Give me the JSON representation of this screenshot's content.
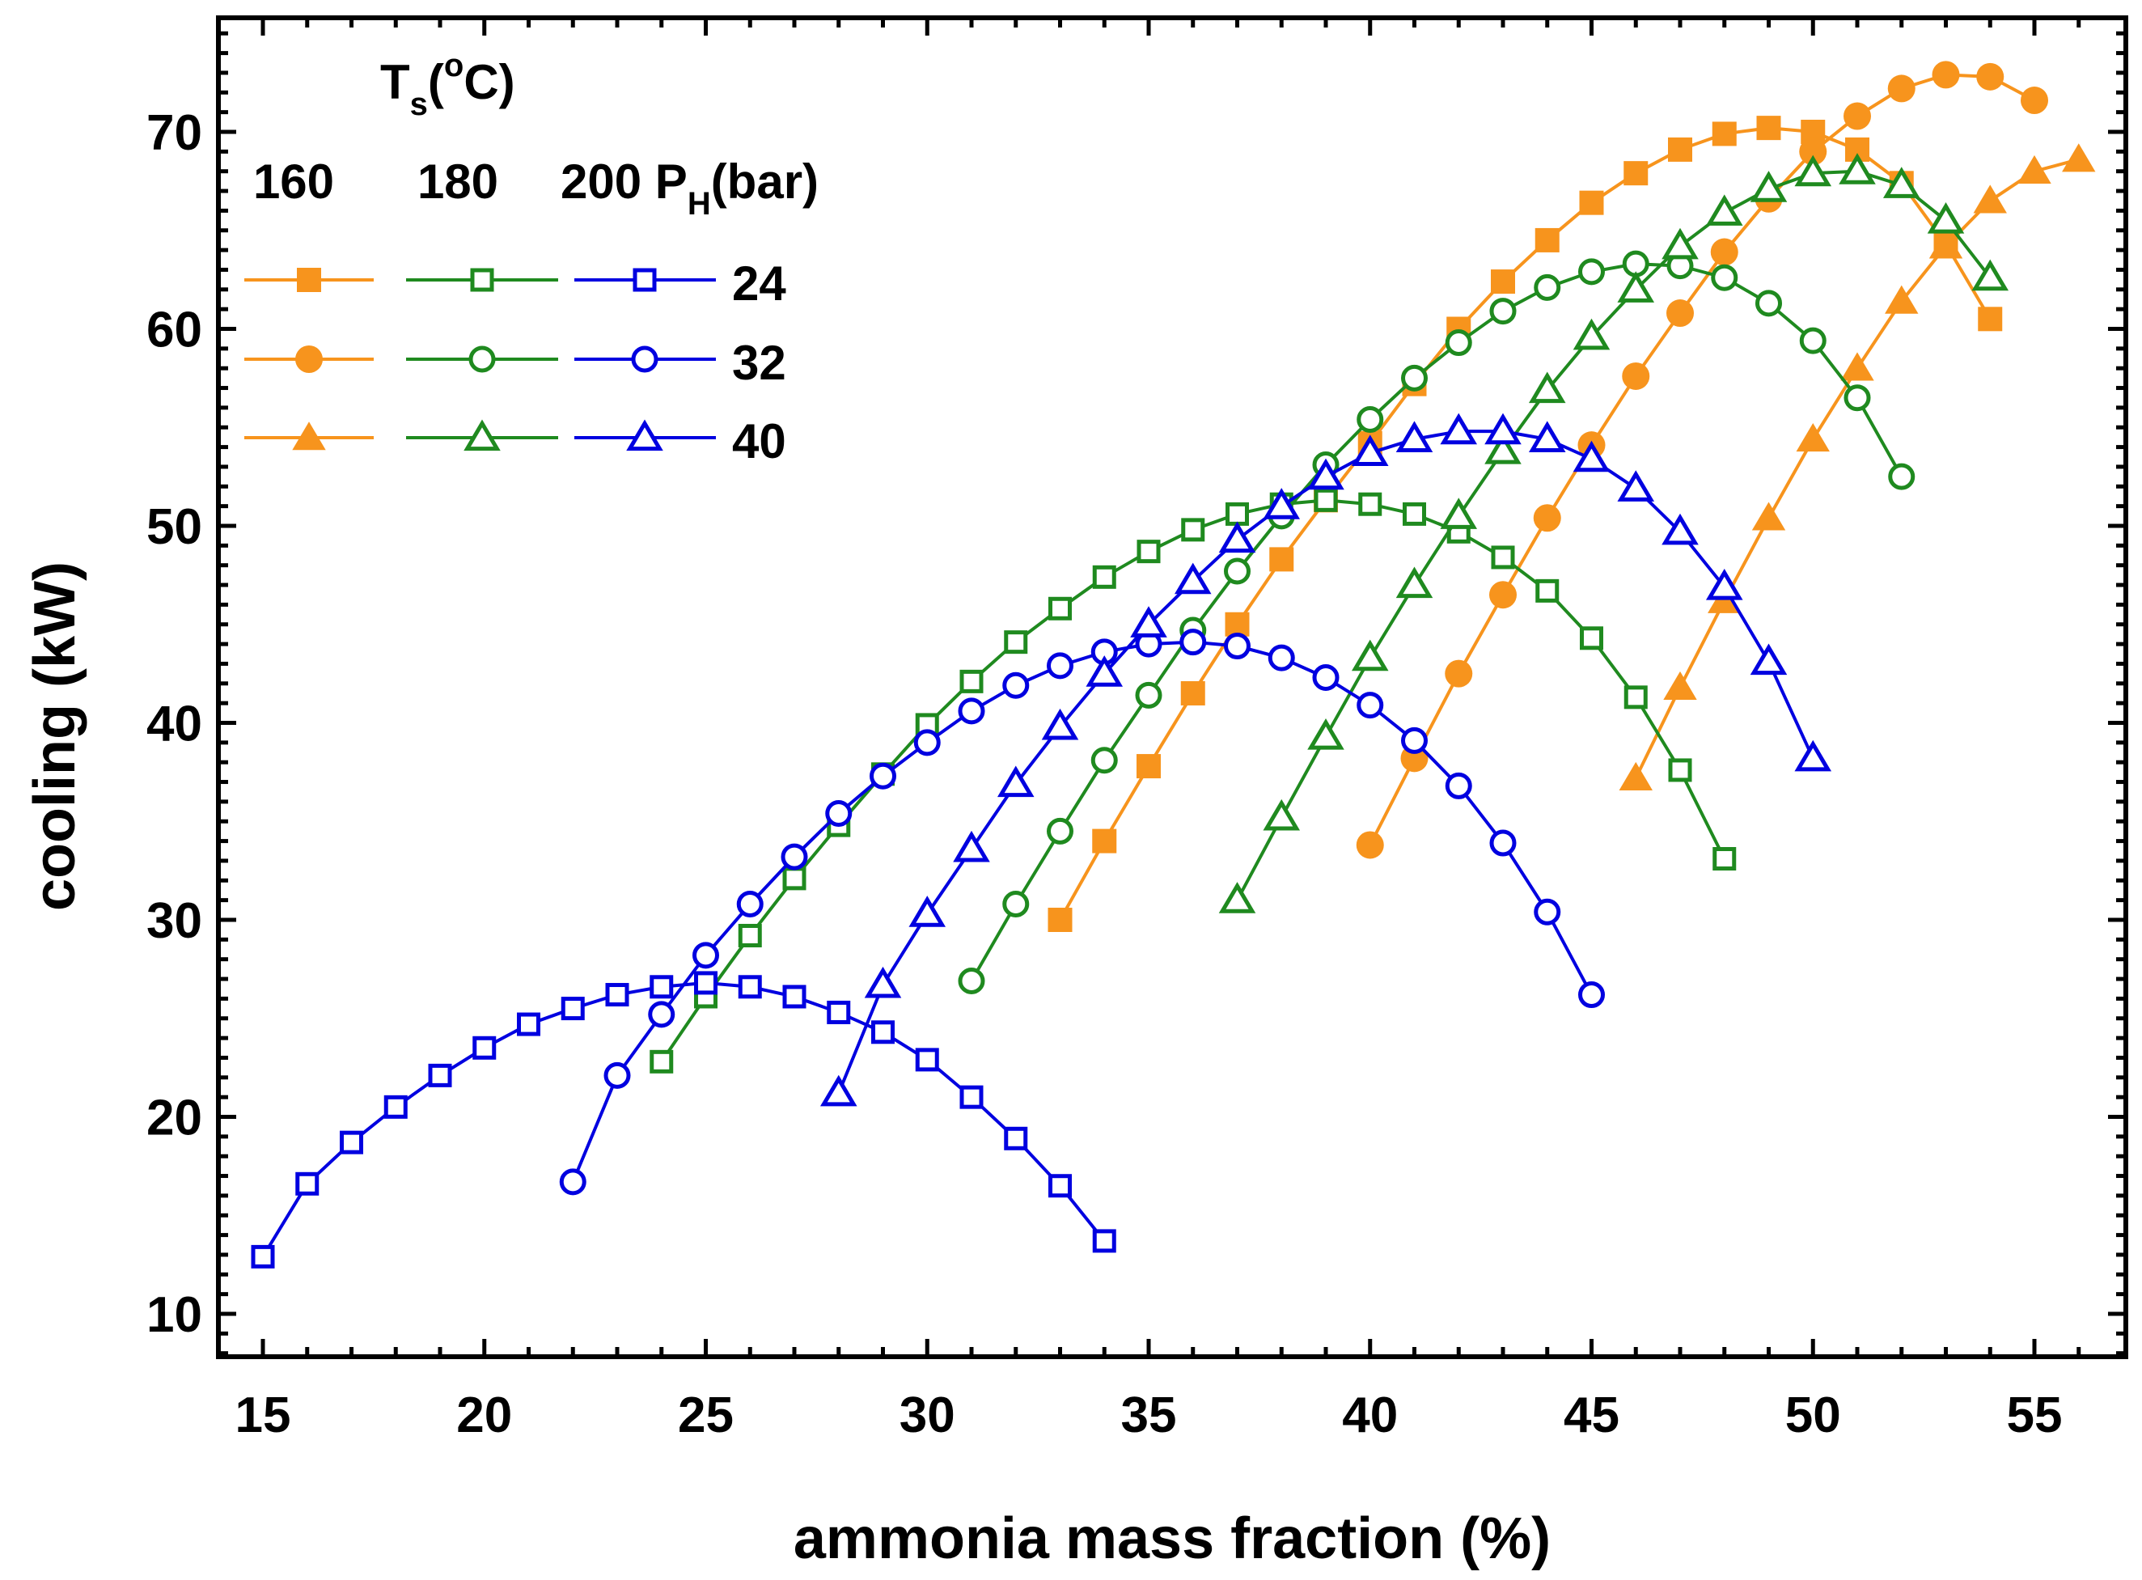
{
  "chart_data": {
    "type": "line",
    "title": "",
    "xlabel": "ammonia mass fraction (%)",
    "ylabel": "cooling (kW)",
    "xlim": [
      14,
      57
    ],
    "ylim": [
      7.5,
      76
    ],
    "xticks": [
      15,
      20,
      25,
      30,
      35,
      40,
      45,
      50,
      55
    ],
    "yticks": [
      10,
      20,
      30,
      40,
      50,
      60,
      70
    ],
    "legend": {
      "placement": "top-left",
      "title_prefix": "T",
      "title_sub": "s",
      "title_open": "(",
      "title_sup": "o",
      "title_unit": "C)",
      "col_labels": [
        "160",
        "180",
        "200"
      ],
      "ph_prefix": "P",
      "ph_sub": "H",
      "ph_unit": "(bar)",
      "row_labels": [
        "24",
        "32",
        "40"
      ]
    },
    "colors": {
      "160": "#F7941D",
      "180": "#1F8A1F",
      "200": "#0000E0"
    },
    "series": [
      {
        "ts": "160",
        "ph": "24",
        "marker": "square",
        "filled": true,
        "x": [
          33,
          34,
          35,
          36,
          37,
          38,
          39,
          40,
          41,
          42,
          43,
          44,
          45,
          46,
          47,
          48,
          49,
          50,
          51,
          52,
          53,
          54
        ],
        "y": [
          30.0,
          34.0,
          37.8,
          41.5,
          45.0,
          48.3,
          51.3,
          54.2,
          57.2,
          60.0,
          62.4,
          64.5,
          66.4,
          67.9,
          69.1,
          69.9,
          70.2,
          70.0,
          69.1,
          67.4,
          64.3,
          60.5
        ]
      },
      {
        "ts": "160",
        "ph": "32",
        "marker": "circle",
        "filled": true,
        "x": [
          40,
          41,
          42,
          43,
          44,
          45,
          46,
          47,
          48,
          49,
          50,
          51,
          52,
          53,
          54,
          55
        ],
        "y": [
          33.8,
          38.2,
          42.5,
          46.5,
          50.4,
          54.1,
          57.6,
          60.8,
          63.9,
          66.6,
          69.0,
          70.8,
          72.2,
          72.9,
          72.8,
          71.6
        ]
      },
      {
        "ts": "160",
        "ph": "40",
        "marker": "triangle",
        "filled": true,
        "x": [
          46,
          47,
          48,
          49,
          50,
          51,
          52,
          53,
          54,
          55,
          56
        ],
        "y": [
          37.2,
          41.8,
          46.2,
          50.4,
          54.4,
          58.0,
          61.4,
          64.2,
          66.5,
          68.0,
          68.6
        ]
      },
      {
        "ts": "180",
        "ph": "24",
        "marker": "square",
        "filled": false,
        "x": [
          24,
          25,
          26,
          27,
          28,
          29,
          30,
          31,
          32,
          33,
          34,
          35,
          36,
          37,
          38,
          39,
          40,
          41,
          42,
          43,
          44,
          45,
          46,
          47,
          48
        ],
        "y": [
          22.8,
          26.1,
          29.2,
          32.1,
          34.8,
          37.4,
          39.9,
          42.1,
          44.1,
          45.8,
          47.4,
          48.7,
          49.8,
          50.6,
          51.1,
          51.3,
          51.1,
          50.6,
          49.7,
          48.4,
          46.7,
          44.3,
          41.3,
          37.6,
          33.1
        ]
      },
      {
        "ts": "180",
        "ph": "32",
        "marker": "circle",
        "filled": false,
        "x": [
          31,
          32,
          33,
          34,
          35,
          36,
          37,
          38,
          39,
          40,
          41,
          42,
          43,
          44,
          45,
          46,
          47,
          48,
          49,
          50,
          51,
          52
        ],
        "y": [
          26.9,
          30.8,
          34.5,
          38.1,
          41.4,
          44.7,
          47.7,
          50.5,
          53.1,
          55.4,
          57.5,
          59.3,
          60.9,
          62.1,
          62.9,
          63.3,
          63.2,
          62.6,
          61.3,
          59.4,
          56.5,
          52.5
        ]
      },
      {
        "ts": "180",
        "ph": "40",
        "marker": "triangle",
        "filled": false,
        "x": [
          37,
          38,
          39,
          40,
          41,
          42,
          43,
          44,
          45,
          46,
          47,
          48,
          49,
          50,
          51,
          52,
          53,
          54
        ],
        "y": [
          31.0,
          35.2,
          39.3,
          43.3,
          47.0,
          50.5,
          53.8,
          56.9,
          59.6,
          62.0,
          64.2,
          65.9,
          67.1,
          67.9,
          68.0,
          67.3,
          65.5,
          62.6
        ]
      },
      {
        "ts": "200",
        "ph": "24",
        "marker": "square",
        "filled": false,
        "x": [
          15,
          16,
          17,
          18,
          19,
          20,
          21,
          22,
          23,
          24,
          25,
          26,
          27,
          28,
          29,
          30,
          31,
          32,
          33,
          34
        ],
        "y": [
          12.9,
          16.6,
          18.7,
          20.5,
          22.1,
          23.5,
          24.7,
          25.5,
          26.2,
          26.6,
          26.8,
          26.6,
          26.1,
          25.3,
          24.3,
          22.9,
          21.0,
          18.9,
          16.5,
          13.7
        ]
      },
      {
        "ts": "200",
        "ph": "32",
        "marker": "circle",
        "filled": false,
        "x": [
          22,
          23,
          24,
          25,
          26,
          27,
          28,
          29,
          30,
          31,
          32,
          33,
          34,
          35,
          36,
          37,
          38,
          39,
          40,
          41,
          42,
          43,
          44,
          45
        ],
        "y": [
          16.7,
          22.1,
          25.2,
          28.2,
          30.8,
          33.2,
          35.4,
          37.3,
          39.0,
          40.6,
          41.9,
          42.9,
          43.6,
          44.0,
          44.1,
          43.9,
          43.3,
          42.3,
          40.9,
          39.1,
          36.8,
          33.9,
          30.4,
          26.2
        ]
      },
      {
        "ts": "200",
        "ph": "40",
        "marker": "triangle",
        "filled": false,
        "x": [
          28,
          29,
          30,
          31,
          32,
          33,
          34,
          35,
          36,
          37,
          38,
          39,
          40,
          41,
          42,
          43,
          44,
          45,
          46,
          47,
          48,
          49,
          50
        ],
        "y": [
          21.2,
          26.7,
          30.3,
          33.6,
          36.9,
          39.8,
          42.5,
          45.0,
          47.2,
          49.3,
          51.0,
          52.5,
          53.7,
          54.4,
          54.8,
          54.8,
          54.4,
          53.4,
          51.9,
          49.7,
          46.9,
          43.1,
          38.2
        ]
      }
    ]
  }
}
